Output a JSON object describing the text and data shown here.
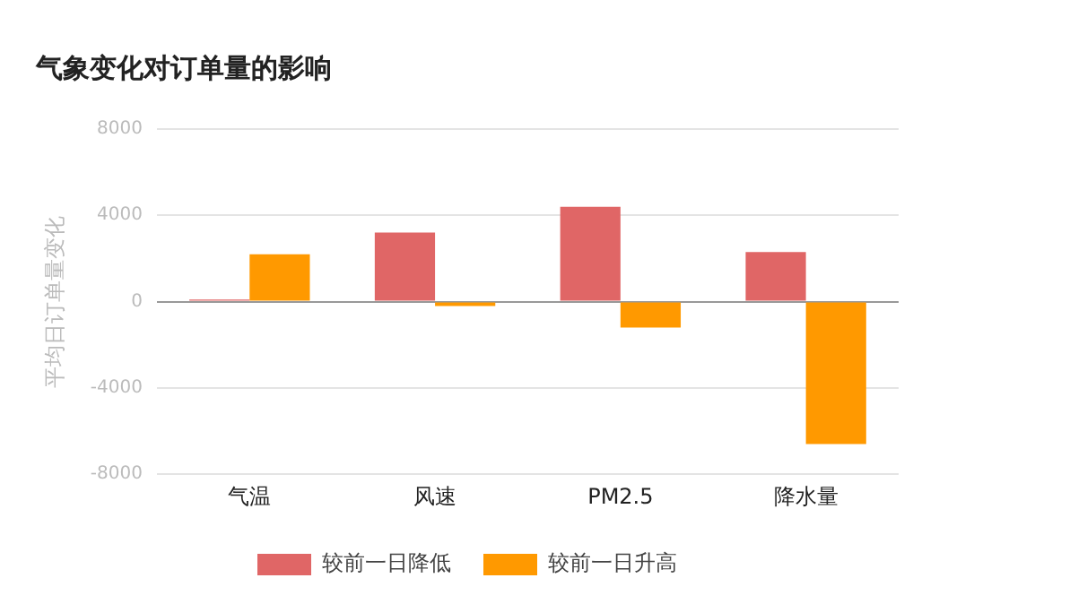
{
  "chart_data": {
    "type": "bar",
    "title": "气象变化对订单量的影响",
    "ylabel": "平均日订单量变化",
    "categories": [
      "气温",
      "风速",
      "PM2.5",
      "降水量"
    ],
    "series": [
      {
        "name": "较前一日降低",
        "color": "#e06666",
        "values": [
          100,
          3200,
          4400,
          2300
        ]
      },
      {
        "name": "较前一日升高",
        "color": "#ff9900",
        "values": [
          2200,
          -200,
          -1200,
          -6600
        ]
      }
    ],
    "ylim": [
      -8000,
      8000
    ],
    "yticks": [
      -8000,
      -4000,
      0,
      4000,
      8000
    ],
    "grid": "y",
    "legend": "bottom"
  }
}
